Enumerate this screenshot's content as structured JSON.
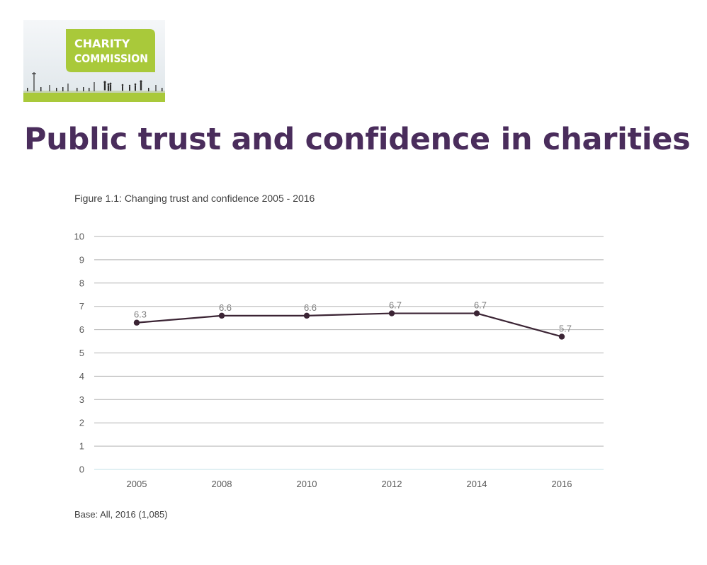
{
  "logo": {
    "line1": "CHARITY",
    "line2": "COMMISSION",
    "colors": {
      "green": "#a9c93a",
      "sky": "#e9eef2",
      "silhouette": "#2e2e2e"
    }
  },
  "page": {
    "title": "Public trust and confidence in charities",
    "title_color": "#4a2d5c"
  },
  "figure": {
    "caption": "Figure 1.1: Changing trust and confidence 2005 - 2016",
    "base_note": "Base: All, 2016 (1,085)"
  },
  "chart_data": {
    "type": "line",
    "title": "Figure 1.1: Changing trust and confidence 2005 - 2016",
    "xlabel": "",
    "ylabel": "",
    "categories": [
      "2005",
      "2008",
      "2010",
      "2012",
      "2014",
      "2016"
    ],
    "series": [
      {
        "values": [
          6.3,
          6.6,
          6.6,
          6.7,
          6.7,
          5.7
        ],
        "color": "#3b2434"
      }
    ],
    "data_labels": [
      "6.3",
      "6.6",
      "6.6",
      "6.7",
      "6.7",
      "5.7"
    ],
    "ylim": [
      0,
      10
    ],
    "yticks": [
      "0",
      "1",
      "2",
      "3",
      "4",
      "5",
      "6",
      "7",
      "8",
      "9",
      "10"
    ],
    "grid": true,
    "legend": "none",
    "colors": {
      "grid": "#b3b3b3",
      "baseline": "#cfe6ec",
      "tick_text": "#595959",
      "label_text": "#7f7f7f"
    }
  }
}
